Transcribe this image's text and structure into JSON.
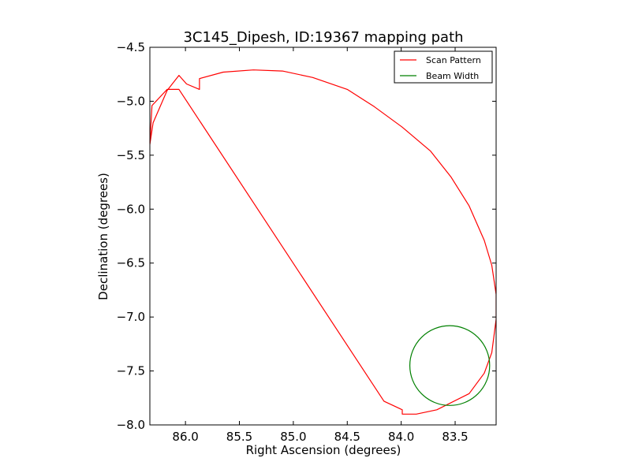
{
  "chart_data": {
    "type": "line",
    "title": "3C145_Dipesh, ID:19367 mapping path",
    "xlabel": "Right Ascension (degrees)",
    "ylabel": "Declination (degrees)",
    "xlim": [
      86.33,
      83.12
    ],
    "ylim": [
      -8.0,
      -4.5
    ],
    "x_axis_inverted": true,
    "x_ticks": [
      86.0,
      85.5,
      85.0,
      84.5,
      84.0,
      83.5
    ],
    "x_tick_labels": [
      "86.0",
      "85.5",
      "85.0",
      "84.5",
      "84.0",
      "83.5"
    ],
    "y_ticks": [
      -4.5,
      -5.0,
      -5.5,
      -6.0,
      -6.5,
      -7.0,
      -7.5,
      -8.0
    ],
    "y_tick_labels": [
      "−4.5",
      "−5.0",
      "−5.5",
      "−6.0",
      "−6.5",
      "−7.0",
      "−7.5",
      "−8.0"
    ],
    "grid": false,
    "legend_position": "upper right",
    "series": [
      {
        "name": "Scan Pattern",
        "color": "#ff0000",
        "x": [
          86.33,
          86.3,
          86.17,
          86.06,
          85.99,
          85.87,
          85.87,
          85.65,
          85.37,
          85.1,
          84.82,
          84.5,
          84.25,
          83.99,
          83.73,
          83.54,
          83.37,
          83.23,
          83.16,
          83.12,
          83.12,
          83.16,
          83.23,
          83.37,
          83.67,
          83.86,
          83.99,
          83.99,
          84.16,
          86.06,
          86.17,
          86.31,
          86.33
        ],
        "y": [
          -5.4,
          -5.2,
          -4.9,
          -4.76,
          -4.84,
          -4.89,
          -4.79,
          -4.73,
          -4.71,
          -4.72,
          -4.78,
          -4.89,
          -5.05,
          -5.24,
          -5.46,
          -5.7,
          -5.97,
          -6.29,
          -6.52,
          -6.79,
          -7.02,
          -7.33,
          -7.52,
          -7.71,
          -7.86,
          -7.9,
          -7.9,
          -7.86,
          -7.78,
          -4.89,
          -4.89,
          -5.04,
          -5.4
        ]
      },
      {
        "name": "Beam Width",
        "color": "#008000",
        "shape": "circle",
        "center": [
          83.55,
          -7.45
        ],
        "radius_ra": 0.37,
        "radius_dec": 0.37
      }
    ]
  }
}
